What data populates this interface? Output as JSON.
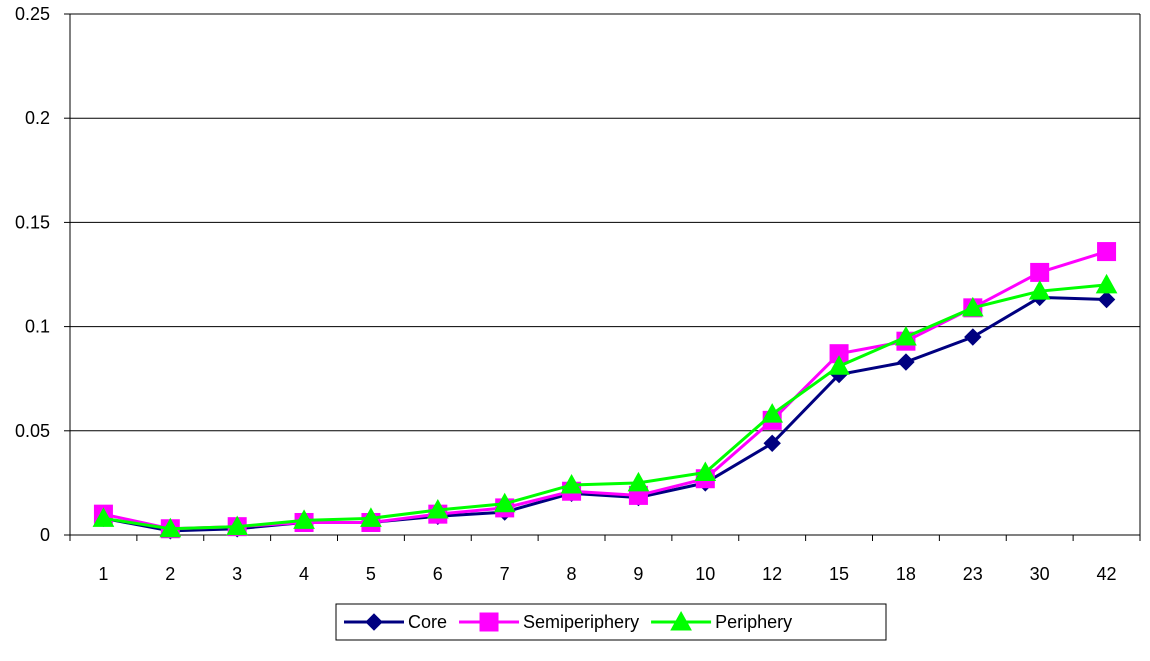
{
  "chart_data": {
    "type": "line",
    "title": "",
    "xlabel": "",
    "ylabel": "",
    "categories": [
      "1",
      "2",
      "3",
      "4",
      "5",
      "6",
      "7",
      "8",
      "9",
      "10",
      "12",
      "15",
      "18",
      "23",
      "30",
      "42"
    ],
    "ylim": [
      0,
      0.25
    ],
    "yticks": [
      0,
      0.05,
      0.1,
      0.15,
      0.2,
      0.25
    ],
    "ytick_labels": [
      "0",
      "0.05",
      "0.1",
      "0.15",
      "0.2",
      "0.25"
    ],
    "grid": "horizontal",
    "legend_position": "bottom",
    "series": [
      {
        "name": "Core",
        "color": "#000080",
        "marker": "diamond",
        "values": [
          0.008,
          0.002,
          0.003,
          0.006,
          0.006,
          0.009,
          0.011,
          0.02,
          0.018,
          0.025,
          0.044,
          0.077,
          0.083,
          0.095,
          0.114,
          0.113
        ]
      },
      {
        "name": "Semiperiphery",
        "color": "#FF00FF",
        "marker": "square",
        "values": [
          0.01,
          0.003,
          0.004,
          0.006,
          0.006,
          0.01,
          0.013,
          0.021,
          0.019,
          0.027,
          0.055,
          0.087,
          0.093,
          0.109,
          0.126,
          0.136
        ]
      },
      {
        "name": "Periphery",
        "color": "#00FF00",
        "marker": "triangle",
        "values": [
          0.008,
          0.003,
          0.004,
          0.007,
          0.008,
          0.012,
          0.015,
          0.024,
          0.025,
          0.03,
          0.058,
          0.081,
          0.095,
          0.109,
          0.117,
          0.12
        ]
      }
    ]
  }
}
